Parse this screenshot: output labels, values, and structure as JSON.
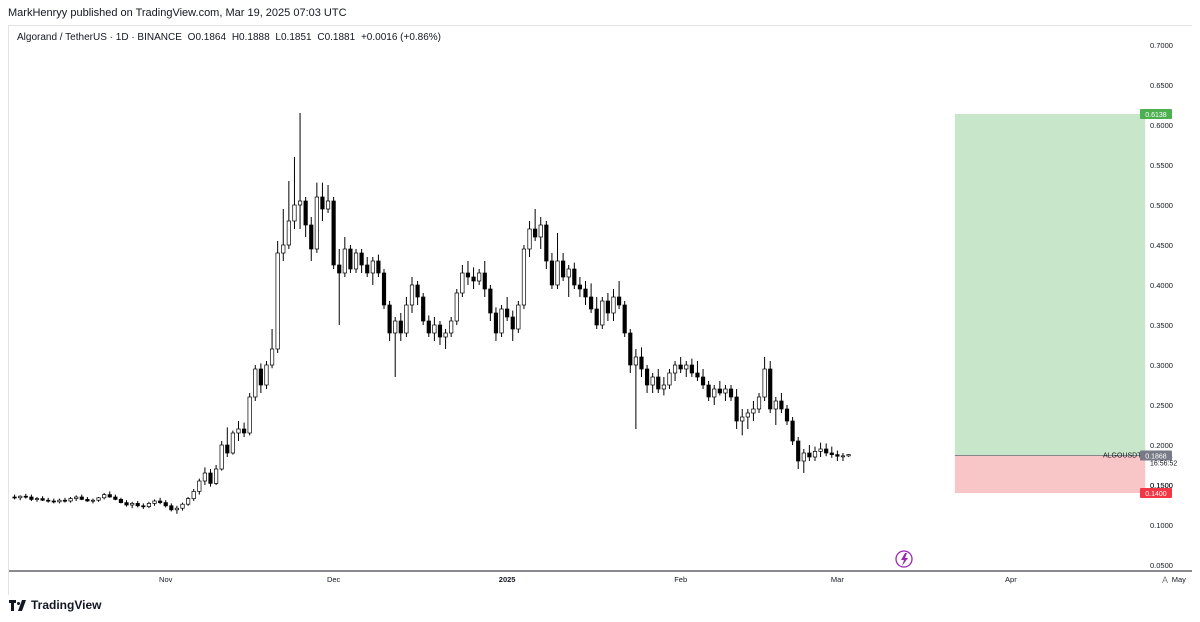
{
  "publisher_line": "MarkHenryy published on TradingView.com, Mar 19, 2025 07:03 UTC",
  "symbol_line": {
    "name": "Algorand / TetherUS · 1D · BINANCE",
    "open": "O0.1864",
    "high": "H0.1888",
    "low": "L0.1851",
    "close": "C0.1881",
    "change": "+0.0016 (+0.86%)"
  },
  "footer": {
    "brand": "TradingView",
    "corner_label": "A"
  },
  "colors": {
    "candle_up_fill": "#ffffff",
    "candle_down_fill": "#000000",
    "candle_outline": "#000000",
    "target_zone": "#c8e6c9",
    "stop_zone": "#f8c6c6",
    "target_badge": "#4caf50",
    "stop_badge": "#f23645",
    "price_badge": "#787b86",
    "lightning_icon": "#9c27b0"
  },
  "chart_data": {
    "type": "candlestick",
    "symbol": "ALGOUSDT",
    "timeframe": "1D",
    "exchange": "BINANCE",
    "y_axis": {
      "ticks": [
        "0.7000",
        "0.6500",
        "0.6000",
        "0.5500",
        "0.5000",
        "0.4500",
        "0.4000",
        "0.3500",
        "0.3000",
        "0.2500",
        "0.2000",
        "0.1500",
        "0.1000",
        "0.0500"
      ],
      "ylim": [
        0.05,
        0.7
      ]
    },
    "x_axis": {
      "ticks": [
        {
          "label": "Nov",
          "day": 0
        },
        {
          "label": "Dec",
          "day": 30
        },
        {
          "label": "2025",
          "day": 61
        },
        {
          "label": "Feb",
          "day": 92
        },
        {
          "label": "Mar",
          "day": 120
        },
        {
          "label": "Apr",
          "day": 151
        },
        {
          "label": "May",
          "day": 181
        }
      ],
      "xlim_days": [
        -28,
        183
      ]
    },
    "price_labels": {
      "symbol_tag": "ALGOUSDT",
      "last_price": "0.1881",
      "countdown": "16:56:52",
      "entry": "0.1868",
      "target": "0.6138",
      "stop": "0.1400"
    },
    "position_tool": {
      "type": "long",
      "entry": 0.1868,
      "target": 0.6138,
      "stop": 0.14,
      "start_day": 141,
      "end_day": 175
    },
    "candles": [
      {
        "o": 0.135,
        "h": 0.138,
        "l": 0.132,
        "c": 0.134
      },
      {
        "o": 0.134,
        "h": 0.137,
        "l": 0.131,
        "c": 0.136
      },
      {
        "o": 0.136,
        "h": 0.139,
        "l": 0.133,
        "c": 0.135
      },
      {
        "o": 0.135,
        "h": 0.138,
        "l": 0.13,
        "c": 0.132
      },
      {
        "o": 0.132,
        "h": 0.135,
        "l": 0.129,
        "c": 0.133
      },
      {
        "o": 0.133,
        "h": 0.136,
        "l": 0.13,
        "c": 0.131
      },
      {
        "o": 0.131,
        "h": 0.134,
        "l": 0.128,
        "c": 0.13
      },
      {
        "o": 0.13,
        "h": 0.133,
        "l": 0.127,
        "c": 0.129
      },
      {
        "o": 0.129,
        "h": 0.133,
        "l": 0.127,
        "c": 0.131
      },
      {
        "o": 0.131,
        "h": 0.134,
        "l": 0.128,
        "c": 0.13
      },
      {
        "o": 0.13,
        "h": 0.135,
        "l": 0.128,
        "c": 0.133
      },
      {
        "o": 0.133,
        "h": 0.137,
        "l": 0.13,
        "c": 0.135
      },
      {
        "o": 0.135,
        "h": 0.138,
        "l": 0.131,
        "c": 0.132
      },
      {
        "o": 0.132,
        "h": 0.135,
        "l": 0.129,
        "c": 0.13
      },
      {
        "o": 0.13,
        "h": 0.133,
        "l": 0.127,
        "c": 0.131
      },
      {
        "o": 0.131,
        "h": 0.135,
        "l": 0.129,
        "c": 0.134
      },
      {
        "o": 0.134,
        "h": 0.14,
        "l": 0.132,
        "c": 0.138
      },
      {
        "o": 0.138,
        "h": 0.142,
        "l": 0.134,
        "c": 0.135
      },
      {
        "o": 0.135,
        "h": 0.138,
        "l": 0.131,
        "c": 0.132
      },
      {
        "o": 0.132,
        "h": 0.134,
        "l": 0.127,
        "c": 0.128
      },
      {
        "o": 0.128,
        "h": 0.131,
        "l": 0.123,
        "c": 0.125
      },
      {
        "o": 0.125,
        "h": 0.129,
        "l": 0.121,
        "c": 0.127
      },
      {
        "o": 0.127,
        "h": 0.13,
        "l": 0.122,
        "c": 0.124
      },
      {
        "o": 0.124,
        "h": 0.127,
        "l": 0.12,
        "c": 0.123
      },
      {
        "o": 0.123,
        "h": 0.129,
        "l": 0.121,
        "c": 0.127
      },
      {
        "o": 0.127,
        "h": 0.132,
        "l": 0.124,
        "c": 0.13
      },
      {
        "o": 0.13,
        "h": 0.134,
        "l": 0.126,
        "c": 0.128
      },
      {
        "o": 0.128,
        "h": 0.131,
        "l": 0.122,
        "c": 0.124
      },
      {
        "o": 0.124,
        "h": 0.127,
        "l": 0.117,
        "c": 0.119
      },
      {
        "o": 0.119,
        "h": 0.124,
        "l": 0.114,
        "c": 0.121
      },
      {
        "o": 0.121,
        "h": 0.128,
        "l": 0.118,
        "c": 0.126
      },
      {
        "o": 0.126,
        "h": 0.135,
        "l": 0.124,
        "c": 0.133
      },
      {
        "o": 0.133,
        "h": 0.145,
        "l": 0.13,
        "c": 0.142
      },
      {
        "o": 0.142,
        "h": 0.158,
        "l": 0.138,
        "c": 0.155
      },
      {
        "o": 0.155,
        "h": 0.172,
        "l": 0.15,
        "c": 0.165
      },
      {
        "o": 0.165,
        "h": 0.17,
        "l": 0.148,
        "c": 0.152
      },
      {
        "o": 0.152,
        "h": 0.175,
        "l": 0.15,
        "c": 0.17
      },
      {
        "o": 0.17,
        "h": 0.205,
        "l": 0.168,
        "c": 0.2
      },
      {
        "o": 0.2,
        "h": 0.222,
        "l": 0.185,
        "c": 0.19
      },
      {
        "o": 0.19,
        "h": 0.218,
        "l": 0.188,
        "c": 0.215
      },
      {
        "o": 0.215,
        "h": 0.23,
        "l": 0.205,
        "c": 0.22
      },
      {
        "o": 0.22,
        "h": 0.228,
        "l": 0.21,
        "c": 0.215
      },
      {
        "o": 0.215,
        "h": 0.265,
        "l": 0.212,
        "c": 0.26
      },
      {
        "o": 0.26,
        "h": 0.3,
        "l": 0.255,
        "c": 0.295
      },
      {
        "o": 0.295,
        "h": 0.302,
        "l": 0.265,
        "c": 0.275
      },
      {
        "o": 0.275,
        "h": 0.305,
        "l": 0.27,
        "c": 0.3
      },
      {
        "o": 0.3,
        "h": 0.345,
        "l": 0.296,
        "c": 0.32
      },
      {
        "o": 0.32,
        "h": 0.455,
        "l": 0.315,
        "c": 0.44
      },
      {
        "o": 0.44,
        "h": 0.495,
        "l": 0.43,
        "c": 0.45
      },
      {
        "o": 0.45,
        "h": 0.53,
        "l": 0.445,
        "c": 0.48
      },
      {
        "o": 0.48,
        "h": 0.56,
        "l": 0.47,
        "c": 0.5
      },
      {
        "o": 0.5,
        "h": 0.615,
        "l": 0.47,
        "c": 0.505
      },
      {
        "o": 0.505,
        "h": 0.51,
        "l": 0.46,
        "c": 0.475
      },
      {
        "o": 0.475,
        "h": 0.485,
        "l": 0.43,
        "c": 0.445
      },
      {
        "o": 0.445,
        "h": 0.528,
        "l": 0.44,
        "c": 0.51
      },
      {
        "o": 0.51,
        "h": 0.528,
        "l": 0.48,
        "c": 0.495
      },
      {
        "o": 0.495,
        "h": 0.525,
        "l": 0.49,
        "c": 0.505
      },
      {
        "o": 0.505,
        "h": 0.51,
        "l": 0.42,
        "c": 0.425
      },
      {
        "o": 0.425,
        "h": 0.445,
        "l": 0.35,
        "c": 0.415
      },
      {
        "o": 0.415,
        "h": 0.46,
        "l": 0.41,
        "c": 0.445
      },
      {
        "o": 0.445,
        "h": 0.45,
        "l": 0.415,
        "c": 0.42
      },
      {
        "o": 0.42,
        "h": 0.445,
        "l": 0.415,
        "c": 0.44
      },
      {
        "o": 0.44,
        "h": 0.445,
        "l": 0.415,
        "c": 0.425
      },
      {
        "o": 0.425,
        "h": 0.435,
        "l": 0.41,
        "c": 0.415
      },
      {
        "o": 0.415,
        "h": 0.435,
        "l": 0.4,
        "c": 0.43
      },
      {
        "o": 0.43,
        "h": 0.438,
        "l": 0.41,
        "c": 0.415
      },
      {
        "o": 0.415,
        "h": 0.42,
        "l": 0.37,
        "c": 0.375
      },
      {
        "o": 0.375,
        "h": 0.38,
        "l": 0.33,
        "c": 0.34
      },
      {
        "o": 0.34,
        "h": 0.36,
        "l": 0.285,
        "c": 0.355
      },
      {
        "o": 0.355,
        "h": 0.365,
        "l": 0.33,
        "c": 0.34
      },
      {
        "o": 0.34,
        "h": 0.385,
        "l": 0.335,
        "c": 0.375
      },
      {
        "o": 0.375,
        "h": 0.41,
        "l": 0.365,
        "c": 0.4
      },
      {
        "o": 0.4,
        "h": 0.405,
        "l": 0.375,
        "c": 0.385
      },
      {
        "o": 0.385,
        "h": 0.39,
        "l": 0.35,
        "c": 0.355
      },
      {
        "o": 0.355,
        "h": 0.362,
        "l": 0.335,
        "c": 0.34
      },
      {
        "o": 0.34,
        "h": 0.36,
        "l": 0.33,
        "c": 0.35
      },
      {
        "o": 0.35,
        "h": 0.355,
        "l": 0.325,
        "c": 0.335
      },
      {
        "o": 0.335,
        "h": 0.345,
        "l": 0.32,
        "c": 0.34
      },
      {
        "o": 0.34,
        "h": 0.36,
        "l": 0.335,
        "c": 0.355
      },
      {
        "o": 0.355,
        "h": 0.395,
        "l": 0.35,
        "c": 0.39
      },
      {
        "o": 0.39,
        "h": 0.425,
        "l": 0.385,
        "c": 0.415
      },
      {
        "o": 0.415,
        "h": 0.43,
        "l": 0.4,
        "c": 0.41
      },
      {
        "o": 0.41,
        "h": 0.422,
        "l": 0.395,
        "c": 0.405
      },
      {
        "o": 0.405,
        "h": 0.42,
        "l": 0.4,
        "c": 0.415
      },
      {
        "o": 0.415,
        "h": 0.43,
        "l": 0.385,
        "c": 0.395
      },
      {
        "o": 0.395,
        "h": 0.4,
        "l": 0.355,
        "c": 0.365
      },
      {
        "o": 0.365,
        "h": 0.372,
        "l": 0.33,
        "c": 0.34
      },
      {
        "o": 0.34,
        "h": 0.375,
        "l": 0.335,
        "c": 0.37
      },
      {
        "o": 0.37,
        "h": 0.385,
        "l": 0.355,
        "c": 0.36
      },
      {
        "o": 0.36,
        "h": 0.368,
        "l": 0.33,
        "c": 0.345
      },
      {
        "o": 0.345,
        "h": 0.38,
        "l": 0.34,
        "c": 0.375
      },
      {
        "o": 0.375,
        "h": 0.45,
        "l": 0.37,
        "c": 0.445
      },
      {
        "o": 0.445,
        "h": 0.48,
        "l": 0.435,
        "c": 0.47
      },
      {
        "o": 0.47,
        "h": 0.495,
        "l": 0.455,
        "c": 0.46
      },
      {
        "o": 0.46,
        "h": 0.485,
        "l": 0.445,
        "c": 0.475
      },
      {
        "o": 0.475,
        "h": 0.48,
        "l": 0.42,
        "c": 0.43
      },
      {
        "o": 0.43,
        "h": 0.44,
        "l": 0.395,
        "c": 0.4
      },
      {
        "o": 0.4,
        "h": 0.465,
        "l": 0.395,
        "c": 0.43
      },
      {
        "o": 0.43,
        "h": 0.44,
        "l": 0.405,
        "c": 0.41
      },
      {
        "o": 0.41,
        "h": 0.425,
        "l": 0.385,
        "c": 0.42
      },
      {
        "o": 0.42,
        "h": 0.428,
        "l": 0.395,
        "c": 0.4
      },
      {
        "o": 0.4,
        "h": 0.41,
        "l": 0.385,
        "c": 0.395
      },
      {
        "o": 0.395,
        "h": 0.405,
        "l": 0.375,
        "c": 0.385
      },
      {
        "o": 0.385,
        "h": 0.402,
        "l": 0.365,
        "c": 0.37
      },
      {
        "o": 0.37,
        "h": 0.385,
        "l": 0.345,
        "c": 0.35
      },
      {
        "o": 0.35,
        "h": 0.385,
        "l": 0.345,
        "c": 0.38
      },
      {
        "o": 0.38,
        "h": 0.39,
        "l": 0.355,
        "c": 0.365
      },
      {
        "o": 0.365,
        "h": 0.395,
        "l": 0.355,
        "c": 0.385
      },
      {
        "o": 0.385,
        "h": 0.405,
        "l": 0.37,
        "c": 0.375
      },
      {
        "o": 0.375,
        "h": 0.38,
        "l": 0.335,
        "c": 0.34
      },
      {
        "o": 0.34,
        "h": 0.345,
        "l": 0.29,
        "c": 0.3
      },
      {
        "o": 0.3,
        "h": 0.32,
        "l": 0.22,
        "c": 0.31
      },
      {
        "o": 0.31,
        "h": 0.322,
        "l": 0.285,
        "c": 0.295
      },
      {
        "o": 0.295,
        "h": 0.3,
        "l": 0.265,
        "c": 0.275
      },
      {
        "o": 0.275,
        "h": 0.29,
        "l": 0.265,
        "c": 0.285
      },
      {
        "o": 0.285,
        "h": 0.295,
        "l": 0.265,
        "c": 0.27
      },
      {
        "o": 0.27,
        "h": 0.285,
        "l": 0.262,
        "c": 0.275
      },
      {
        "o": 0.275,
        "h": 0.295,
        "l": 0.27,
        "c": 0.29
      },
      {
        "o": 0.29,
        "h": 0.305,
        "l": 0.28,
        "c": 0.3
      },
      {
        "o": 0.3,
        "h": 0.31,
        "l": 0.29,
        "c": 0.295
      },
      {
        "o": 0.295,
        "h": 0.305,
        "l": 0.285,
        "c": 0.3
      },
      {
        "o": 0.3,
        "h": 0.308,
        "l": 0.285,
        "c": 0.29
      },
      {
        "o": 0.29,
        "h": 0.305,
        "l": 0.28,
        "c": 0.285
      },
      {
        "o": 0.285,
        "h": 0.295,
        "l": 0.27,
        "c": 0.275
      },
      {
        "o": 0.275,
        "h": 0.28,
        "l": 0.255,
        "c": 0.26
      },
      {
        "o": 0.26,
        "h": 0.275,
        "l": 0.25,
        "c": 0.27
      },
      {
        "o": 0.27,
        "h": 0.28,
        "l": 0.262,
        "c": 0.265
      },
      {
        "o": 0.265,
        "h": 0.275,
        "l": 0.255,
        "c": 0.27
      },
      {
        "o": 0.27,
        "h": 0.275,
        "l": 0.255,
        "c": 0.26
      },
      {
        "o": 0.26,
        "h": 0.27,
        "l": 0.22,
        "c": 0.23
      },
      {
        "o": 0.23,
        "h": 0.245,
        "l": 0.212,
        "c": 0.235
      },
      {
        "o": 0.235,
        "h": 0.245,
        "l": 0.22,
        "c": 0.24
      },
      {
        "o": 0.24,
        "h": 0.255,
        "l": 0.23,
        "c": 0.245
      },
      {
        "o": 0.245,
        "h": 0.265,
        "l": 0.24,
        "c": 0.26
      },
      {
        "o": 0.26,
        "h": 0.31,
        "l": 0.255,
        "c": 0.295
      },
      {
        "o": 0.295,
        "h": 0.305,
        "l": 0.24,
        "c": 0.245
      },
      {
        "o": 0.245,
        "h": 0.26,
        "l": 0.225,
        "c": 0.255
      },
      {
        "o": 0.255,
        "h": 0.265,
        "l": 0.24,
        "c": 0.245
      },
      {
        "o": 0.245,
        "h": 0.25,
        "l": 0.225,
        "c": 0.23
      },
      {
        "o": 0.23,
        "h": 0.235,
        "l": 0.2,
        "c": 0.205
      },
      {
        "o": 0.205,
        "h": 0.21,
        "l": 0.17,
        "c": 0.18
      },
      {
        "o": 0.18,
        "h": 0.195,
        "l": 0.165,
        "c": 0.19
      },
      {
        "o": 0.19,
        "h": 0.2,
        "l": 0.18,
        "c": 0.185
      },
      {
        "o": 0.185,
        "h": 0.198,
        "l": 0.18,
        "c": 0.192
      },
      {
        "o": 0.192,
        "h": 0.203,
        "l": 0.185,
        "c": 0.195
      },
      {
        "o": 0.195,
        "h": 0.202,
        "l": 0.186,
        "c": 0.19
      },
      {
        "o": 0.19,
        "h": 0.198,
        "l": 0.184,
        "c": 0.188
      },
      {
        "o": 0.188,
        "h": 0.193,
        "l": 0.18,
        "c": 0.186
      },
      {
        "o": 0.186,
        "h": 0.19,
        "l": 0.18,
        "c": 0.1864
      },
      {
        "o": 0.1864,
        "h": 0.1888,
        "l": 0.1851,
        "c": 0.1881
      }
    ]
  }
}
